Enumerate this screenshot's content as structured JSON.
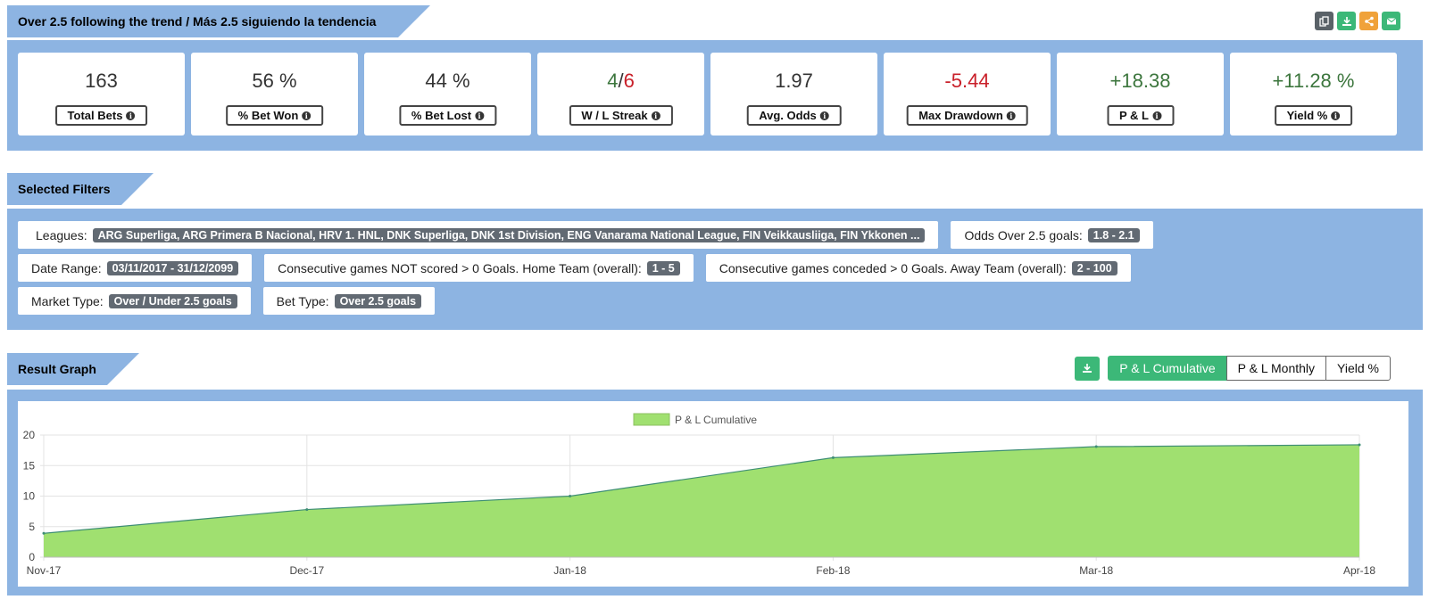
{
  "header": {
    "title": "Over 2.5 following the trend / Más 2.5 siguiendo la tendencia",
    "actions": [
      {
        "name": "copy-icon",
        "color": "#5a6268"
      },
      {
        "name": "download-icon",
        "color": "#3cb878"
      },
      {
        "name": "share-icon",
        "color": "#f0a23a"
      },
      {
        "name": "envelope-icon",
        "color": "#3cb878"
      }
    ]
  },
  "stats": {
    "total_bets": {
      "value": "163",
      "label": "Total Bets"
    },
    "bet_won": {
      "value": "56 %",
      "label": "% Bet Won"
    },
    "bet_lost": {
      "value": "44 %",
      "label": "% Bet Lost"
    },
    "streak": {
      "win": "4",
      "sep": "/",
      "loss": "6",
      "label": "W / L Streak"
    },
    "avg_odds": {
      "value": "1.97",
      "label": "Avg. Odds"
    },
    "max_drawdown": {
      "value": "-5.44",
      "label": "Max Drawdown"
    },
    "pl": {
      "value": "+18.38",
      "label": "P & L"
    },
    "yield": {
      "value": "+11.28 %",
      "label": "Yield %"
    }
  },
  "filters": {
    "title": "Selected Filters",
    "leagues": {
      "label": "Leagues:",
      "value": "ARG Superliga, ARG Primera B Nacional, HRV 1. HNL, DNK Superliga, DNK 1st Division, ENG Vanarama National League, FIN Veikkausliiga, FIN Ykkonen ..."
    },
    "odds": {
      "label": "Odds Over 2.5 goals:",
      "value": "1.8 - 2.1"
    },
    "date_range": {
      "label": "Date Range:",
      "value": "03/11/2017 - 31/12/2099"
    },
    "not_scored": {
      "label": "Consecutive games NOT scored > 0 Goals. Home Team (overall):",
      "value": "1 - 5"
    },
    "conceded": {
      "label": "Consecutive games conceded > 0 Goals. Away Team (overall):",
      "value": "2 - 100"
    },
    "market_type": {
      "label": "Market Type:",
      "value": "Over / Under 2.5 goals"
    },
    "bet_type": {
      "label": "Bet Type:",
      "value": "Over 2.5 goals"
    }
  },
  "graph": {
    "title": "Result Graph",
    "tabs": [
      "P & L Cumulative",
      "P & L Monthly",
      "Yield %"
    ],
    "active_tab": 0
  },
  "chart_data": {
    "type": "area",
    "categories": [
      "Nov-17",
      "Dec-17",
      "Jan-18",
      "Feb-18",
      "Mar-18",
      "Apr-18"
    ],
    "series": [
      {
        "name": "P & L Cumulative",
        "values": [
          3.9,
          7.8,
          10.0,
          16.3,
          18.1,
          18.4
        ],
        "color": "#a0e070",
        "line_color": "#3e8e75"
      }
    ],
    "ylim": [
      0,
      20
    ],
    "yticks": [
      0,
      5,
      10,
      15,
      20
    ],
    "grid": true,
    "legend": "top-center"
  }
}
